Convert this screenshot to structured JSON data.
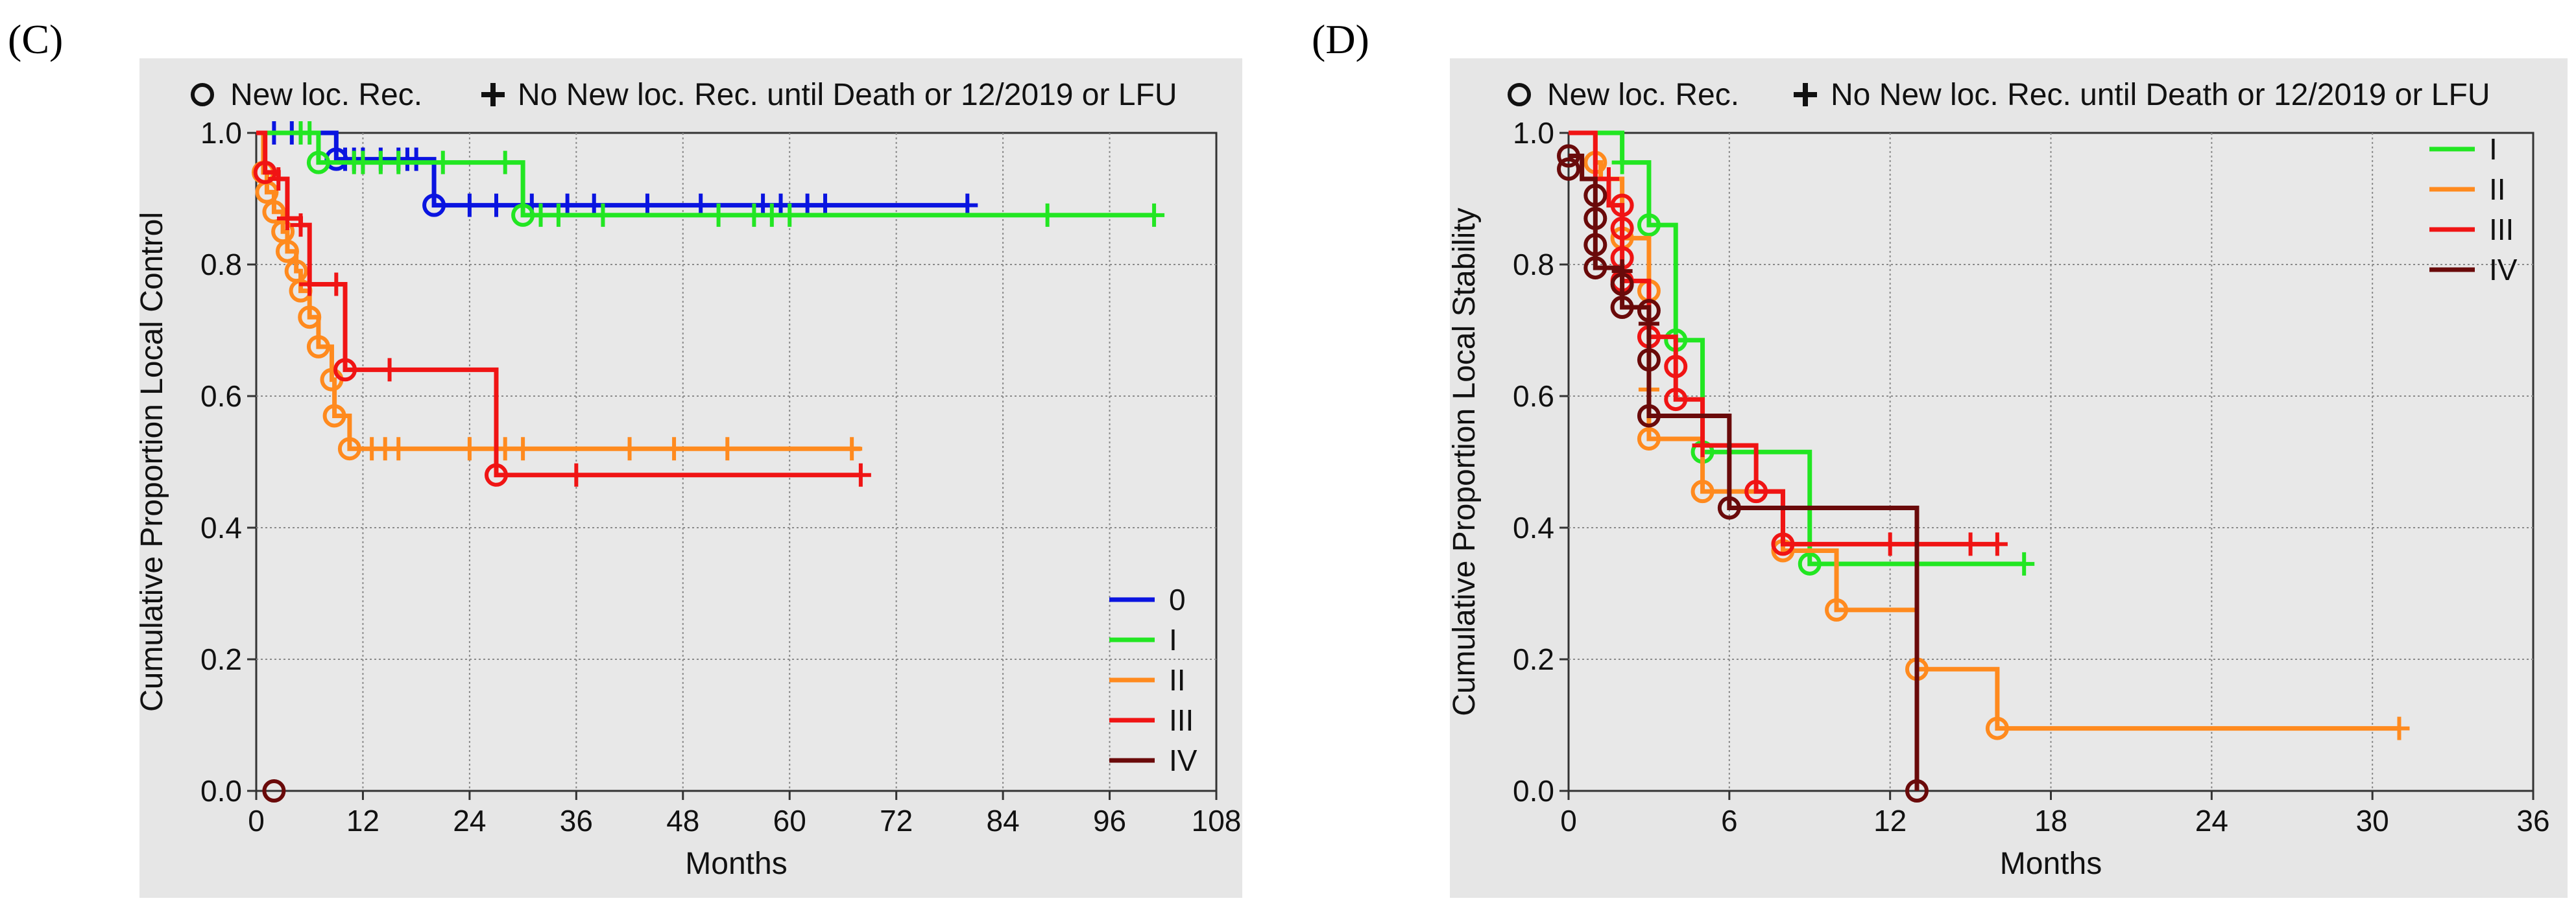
{
  "panels": {
    "C": {
      "letter": "(C)"
    },
    "D": {
      "letter": "(D)"
    }
  },
  "legend_top": {
    "event_label": "New loc. Rec.",
    "censor_label": "No New loc. Rec. until Death or 12/2019 or LFU"
  },
  "series_colors": {
    "0": "#0a14e0",
    "I": "#22e622",
    "II": "#ff8a1e",
    "III": "#f01414",
    "IV": "#6a0a0a"
  },
  "chart_data": [
    {
      "type": "line",
      "subtype": "kaplan-meier",
      "panel": "C",
      "xlabel": "Months",
      "ylabel": "Cumulative Proportion Local Control",
      "xlim": [
        0,
        108
      ],
      "ylim": [
        0,
        1.0
      ],
      "xticks": [
        0,
        12,
        24,
        36,
        48,
        60,
        72,
        84,
        96,
        108
      ],
      "yticks": [
        0.0,
        0.2,
        0.4,
        0.6,
        0.8,
        1.0
      ],
      "xtick_labels": [
        "0",
        "12",
        "24",
        "36",
        "48",
        "60",
        "72",
        "84",
        "96",
        "108"
      ],
      "ytick_labels": [
        "0.0",
        "0.2",
        "0.4",
        "0.6",
        "0.8",
        "1.0"
      ],
      "legend_position": "bottom-right",
      "series": [
        {
          "name": "0",
          "steps": [
            [
              0,
              1.0
            ],
            [
              9,
              0.96
            ],
            [
              20,
              0.89
            ],
            [
              80,
              0.89
            ]
          ],
          "events": [
            [
              9,
              0.96
            ],
            [
              20,
              0.89
            ]
          ],
          "censors": [
            [
              2,
              1.0
            ],
            [
              4,
              1.0
            ],
            [
              5,
              1.0
            ],
            [
              10,
              0.96
            ],
            [
              11,
              0.96
            ],
            [
              12,
              0.96
            ],
            [
              14,
              0.96
            ],
            [
              16,
              0.96
            ],
            [
              17,
              0.96
            ],
            [
              18,
              0.96
            ],
            [
              24,
              0.89
            ],
            [
              27,
              0.89
            ],
            [
              31,
              0.89
            ],
            [
              35,
              0.89
            ],
            [
              38,
              0.89
            ],
            [
              44,
              0.89
            ],
            [
              50,
              0.89
            ],
            [
              57,
              0.89
            ],
            [
              59,
              0.89
            ],
            [
              62,
              0.89
            ],
            [
              64,
              0.89
            ],
            [
              80,
              0.89
            ]
          ]
        },
        {
          "name": "I",
          "steps": [
            [
              0,
              1.0
            ],
            [
              7,
              0.955
            ],
            [
              30,
              0.875
            ],
            [
              101,
              0.875
            ]
          ],
          "events": [
            [
              7,
              0.955
            ],
            [
              30,
              0.875
            ]
          ],
          "censors": [
            [
              5,
              1.0
            ],
            [
              6,
              1.0
            ],
            [
              11,
              0.955
            ],
            [
              12,
              0.955
            ],
            [
              14,
              0.955
            ],
            [
              16,
              0.955
            ],
            [
              21,
              0.955
            ],
            [
              28,
              0.955
            ],
            [
              32,
              0.875
            ],
            [
              34,
              0.875
            ],
            [
              39,
              0.875
            ],
            [
              52,
              0.875
            ],
            [
              56,
              0.875
            ],
            [
              58,
              0.875
            ],
            [
              60,
              0.875
            ],
            [
              89,
              0.875
            ],
            [
              101,
              0.875
            ]
          ]
        },
        {
          "name": "II",
          "steps": [
            [
              0,
              1.0
            ],
            [
              0.8,
              0.94
            ],
            [
              1.2,
              0.91
            ],
            [
              2,
              0.88
            ],
            [
              3,
              0.85
            ],
            [
              3.5,
              0.82
            ],
            [
              4.5,
              0.79
            ],
            [
              5,
              0.76
            ],
            [
              6,
              0.72
            ],
            [
              7,
              0.675
            ],
            [
              8.5,
              0.625
            ],
            [
              8.8,
              0.57
            ],
            [
              10.5,
              0.52
            ],
            [
              68,
              0.52
            ]
          ],
          "events": [
            [
              0.8,
              0.94
            ],
            [
              1.2,
              0.91
            ],
            [
              2,
              0.88
            ],
            [
              3,
              0.85
            ],
            [
              3.5,
              0.82
            ],
            [
              4.5,
              0.79
            ],
            [
              5,
              0.76
            ],
            [
              6,
              0.72
            ],
            [
              7,
              0.675
            ],
            [
              8.5,
              0.625
            ],
            [
              8.8,
              0.57
            ],
            [
              10.5,
              0.52
            ]
          ],
          "censors": [
            [
              13,
              0.52
            ],
            [
              14.5,
              0.52
            ],
            [
              16,
              0.52
            ],
            [
              24,
              0.52
            ],
            [
              28,
              0.52
            ],
            [
              30,
              0.52
            ],
            [
              42,
              0.52
            ],
            [
              47,
              0.52
            ],
            [
              53,
              0.52
            ],
            [
              67,
              0.52
            ]
          ]
        },
        {
          "name": "III",
          "steps": [
            [
              0,
              1.0
            ],
            [
              1,
              0.94
            ],
            [
              2.5,
              0.93
            ],
            [
              3.5,
              0.87
            ],
            [
              5,
              0.86
            ],
            [
              6,
              0.77
            ],
            [
              10,
              0.64
            ],
            [
              27,
              0.48
            ],
            [
              68,
              0.48
            ]
          ],
          "events": [
            [
              1,
              0.94
            ],
            [
              10,
              0.64
            ],
            [
              27,
              0.48
            ]
          ],
          "censors": [
            [
              2.5,
              0.93
            ],
            [
              3.5,
              0.87
            ],
            [
              5,
              0.86
            ],
            [
              6,
              0.77
            ],
            [
              9,
              0.77
            ],
            [
              15,
              0.64
            ],
            [
              36,
              0.48
            ],
            [
              68,
              0.48
            ]
          ]
        },
        {
          "name": "IV",
          "steps": [],
          "events": [
            [
              2,
              0.0
            ]
          ],
          "censors": []
        }
      ]
    },
    {
      "type": "line",
      "subtype": "kaplan-meier",
      "panel": "D",
      "xlabel": "Months",
      "ylabel": "Cumulative Proportion Local Stability",
      "xlim": [
        0,
        36
      ],
      "ylim": [
        0,
        1.0
      ],
      "xticks": [
        0,
        6,
        12,
        18,
        24,
        30,
        36
      ],
      "yticks": [
        0.0,
        0.2,
        0.4,
        0.6,
        0.8,
        1.0
      ],
      "xtick_labels": [
        "0",
        "6",
        "12",
        "18",
        "24",
        "30",
        "36"
      ],
      "ytick_labels": [
        "0.0",
        "0.2",
        "0.4",
        "0.6",
        "0.8",
        "1.0"
      ],
      "legend_position": "top-right",
      "series": [
        {
          "name": "I",
          "steps": [
            [
              0,
              1.0
            ],
            [
              2,
              0.955
            ],
            [
              3,
              0.86
            ],
            [
              4,
              0.685
            ],
            [
              5,
              0.515
            ],
            [
              9,
              0.345
            ],
            [
              17,
              0.345
            ]
          ],
          "events": [
            [
              3,
              0.86
            ],
            [
              4,
              0.685
            ],
            [
              5,
              0.515
            ],
            [
              9,
              0.345
            ]
          ],
          "censors": [
            [
              2,
              0.955
            ],
            [
              17,
              0.345
            ]
          ]
        },
        {
          "name": "II",
          "steps": [
            [
              0,
              1.0
            ],
            [
              1,
              0.955
            ],
            [
              1.2,
              0.93
            ],
            [
              2,
              0.84
            ],
            [
              3,
              0.76
            ],
            [
              3,
              0.61
            ],
            [
              3,
              0.535
            ],
            [
              5,
              0.455
            ],
            [
              8,
              0.365
            ],
            [
              10,
              0.275
            ],
            [
              13,
              0.185
            ],
            [
              16,
              0.095
            ],
            [
              31,
              0.095
            ]
          ],
          "events": [
            [
              1,
              0.955
            ],
            [
              2,
              0.84
            ],
            [
              3,
              0.76
            ],
            [
              3,
              0.535
            ],
            [
              5,
              0.455
            ],
            [
              8,
              0.365
            ],
            [
              10,
              0.275
            ],
            [
              13,
              0.185
            ],
            [
              16,
              0.095
            ]
          ],
          "censors": [
            [
              3,
              0.61
            ],
            [
              31,
              0.095
            ]
          ]
        },
        {
          "name": "III",
          "steps": [
            [
              0,
              1.0
            ],
            [
              1,
              0.93
            ],
            [
              1.5,
              0.89
            ],
            [
              2,
              0.855
            ],
            [
              2,
              0.81
            ],
            [
              2,
              0.775
            ],
            [
              3,
              0.69
            ],
            [
              4,
              0.645
            ],
            [
              4,
              0.595
            ],
            [
              5,
              0.525
            ],
            [
              7,
              0.455
            ],
            [
              8,
              0.375
            ],
            [
              16,
              0.375
            ]
          ],
          "events": [
            [
              2,
              0.89
            ],
            [
              2,
              0.855
            ],
            [
              2,
              0.81
            ],
            [
              2,
              0.775
            ],
            [
              3,
              0.69
            ],
            [
              4,
              0.645
            ],
            [
              4,
              0.595
            ],
            [
              7,
              0.455
            ],
            [
              8,
              0.375
            ]
          ],
          "censors": [
            [
              1.5,
              0.93
            ],
            [
              5,
              0.525
            ],
            [
              12,
              0.375
            ],
            [
              15,
              0.375
            ],
            [
              16,
              0.375
            ]
          ]
        },
        {
          "name": "IV",
          "steps": [
            [
              0,
              0.965
            ],
            [
              0.5,
              0.93
            ],
            [
              1,
              0.905
            ],
            [
              1,
              0.87
            ],
            [
              1,
              0.83
            ],
            [
              1,
              0.795
            ],
            [
              2,
              0.77
            ],
            [
              2,
              0.735
            ],
            [
              3,
              0.73
            ],
            [
              3,
              0.655
            ],
            [
              3,
              0.57
            ],
            [
              6,
              0.43
            ],
            [
              13,
              0.0
            ]
          ],
          "events": [
            [
              0,
              0.965
            ],
            [
              0,
              0.945
            ],
            [
              1,
              0.905
            ],
            [
              1,
              0.87
            ],
            [
              1,
              0.83
            ],
            [
              1,
              0.795
            ],
            [
              2,
              0.77
            ],
            [
              2,
              0.735
            ],
            [
              3,
              0.73
            ],
            [
              3,
              0.655
            ],
            [
              3,
              0.57
            ],
            [
              6,
              0.43
            ],
            [
              13,
              0.0
            ]
          ],
          "censors": [
            [
              2,
              0.79
            ],
            [
              3,
              0.71
            ]
          ]
        }
      ]
    }
  ]
}
